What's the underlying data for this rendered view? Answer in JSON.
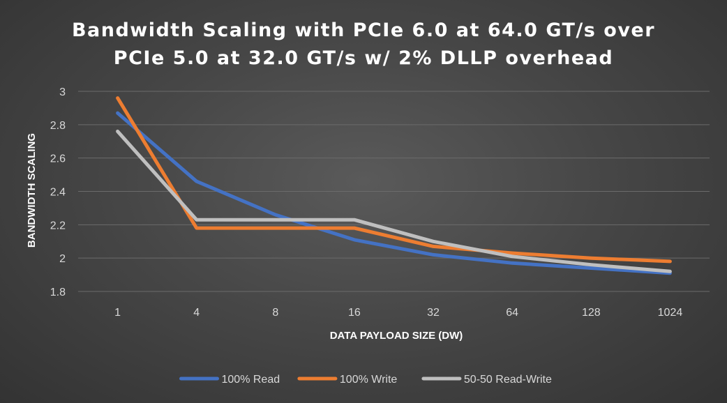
{
  "chart_data": {
    "type": "line",
    "title_lines": [
      "Bandwidth Scaling with PCIe 6.0 at 64.0 GT/s over",
      "PCIe 5.0 at 32.0 GT/s w/ 2% DLLP overhead"
    ],
    "xlabel": "DATA PAYLOAD SIZE (DW)",
    "ylabel": "BANDWIDTH SCALING",
    "categories": [
      "1",
      "4",
      "8",
      "16",
      "32",
      "64",
      "128",
      "1024"
    ],
    "ylim": [
      1.8,
      3.0
    ],
    "yticks": [
      "1.8",
      "2",
      "2.2",
      "2.4",
      "2.6",
      "2.8",
      "3"
    ],
    "grid": true,
    "legend_position": "bottom",
    "series": [
      {
        "name": "100% Read",
        "color": "#4472c4",
        "values": [
          2.87,
          2.46,
          2.26,
          2.11,
          2.02,
          1.97,
          1.94,
          1.91
        ]
      },
      {
        "name": "100% Write",
        "color": "#ed7d31",
        "values": [
          2.96,
          2.18,
          2.18,
          2.18,
          2.07,
          2.03,
          2.0,
          1.98
        ]
      },
      {
        "name": "50-50 Read-Write",
        "color": "#bfbfbf",
        "values": [
          2.76,
          2.23,
          2.23,
          2.23,
          2.1,
          2.01,
          1.96,
          1.92
        ]
      }
    ]
  }
}
